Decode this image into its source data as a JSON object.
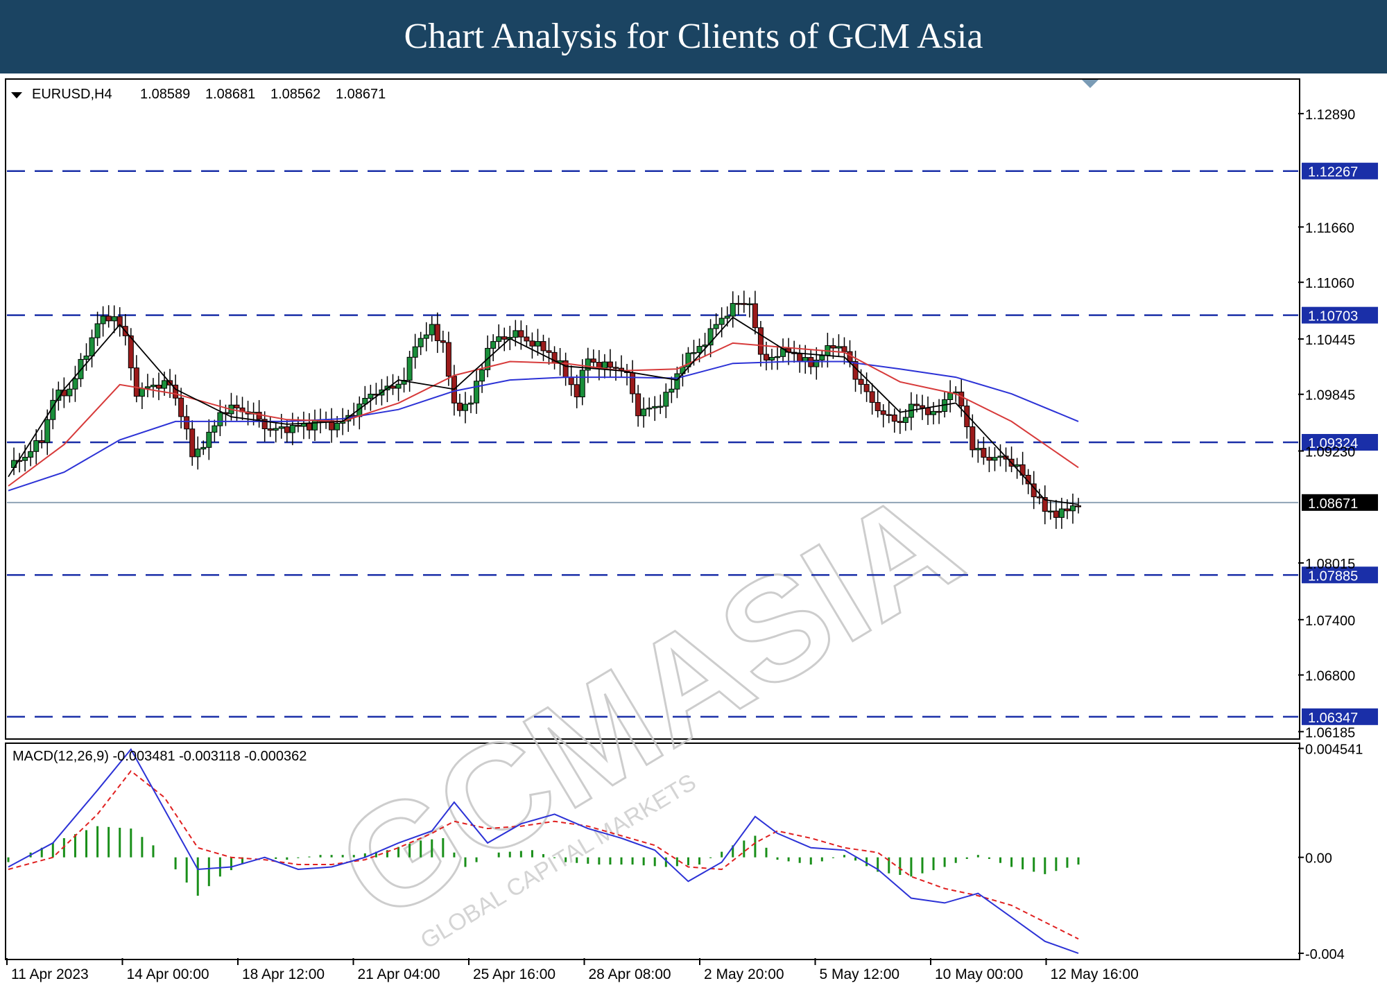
{
  "banner": {
    "title": "Chart Analysis for Clients of GCM Asia"
  },
  "chart_data": {
    "type": "candlestick",
    "symbol_header": {
      "symbol": "EURUSD,H4",
      "ohlc": [
        "1.08589",
        "1.08681",
        "1.08562",
        "1.08671"
      ]
    },
    "price_axis": {
      "range": [
        1.0612,
        1.1325
      ],
      "ticks": [
        {
          "value": 1.1289,
          "label": "1.12890"
        },
        {
          "value": 1.1166,
          "label": "1.11660"
        },
        {
          "value": 1.1106,
          "label": "1.11060"
        },
        {
          "value": 1.10445,
          "label": "1.10445"
        },
        {
          "value": 1.09845,
          "label": "1.09845"
        },
        {
          "value": 1.0923,
          "label": "1.09230"
        },
        {
          "value": 1.08015,
          "label": "1.08015"
        },
        {
          "value": 1.074,
          "label": "1.07400"
        },
        {
          "value": 1.068,
          "label": "1.06800"
        },
        {
          "value": 1.06185,
          "label": "1.06185"
        }
      ]
    },
    "levels": [
      {
        "value": 1.12267,
        "label": "1.12267"
      },
      {
        "value": 1.10703,
        "label": "1.10703"
      },
      {
        "value": 1.09324,
        "label": "1.09324"
      },
      {
        "value": 1.07885,
        "label": "1.07885"
      },
      {
        "value": 1.06347,
        "label": "1.06347"
      }
    ],
    "current_price": {
      "value": 1.08671,
      "label": "1.08671"
    },
    "x_labels": [
      "11 Apr 2023",
      "14 Apr 00:00",
      "18 Apr 12:00",
      "21 Apr 04:00",
      "25 Apr 16:00",
      "28 Apr 08:00",
      "2 May 20:00",
      "5 May 12:00",
      "10 May 00:00",
      "12 May 16:00"
    ],
    "close_path": [
      [
        0,
        1.0905
      ],
      [
        3,
        1.0918
      ],
      [
        6,
        1.0935
      ],
      [
        8,
        1.098
      ],
      [
        11,
        1.099
      ],
      [
        14,
        1.103
      ],
      [
        16,
        1.1062
      ],
      [
        19,
        1.107
      ],
      [
        21,
        1.1045
      ],
      [
        23,
        1.0985
      ],
      [
        26,
        1.0995
      ],
      [
        29,
        1.0995
      ],
      [
        31,
        1.0965
      ],
      [
        33,
        1.0918
      ],
      [
        36,
        1.0938
      ],
      [
        38,
        1.0965
      ],
      [
        41,
        1.097
      ],
      [
        44,
        1.0962
      ],
      [
        47,
        1.0945
      ],
      [
        50,
        1.0948
      ],
      [
        53,
        1.095
      ],
      [
        56,
        1.0955
      ],
      [
        59,
        1.095
      ],
      [
        62,
        1.0965
      ],
      [
        65,
        1.0985
      ],
      [
        68,
        1.099
      ],
      [
        71,
        1.1
      ],
      [
        73,
        1.104
      ],
      [
        76,
        1.1055
      ],
      [
        78,
        1.104
      ],
      [
        80,
        1.097
      ],
      [
        83,
        1.0975
      ],
      [
        86,
        1.1035
      ],
      [
        88,
        1.1045
      ],
      [
        91,
        1.105
      ],
      [
        94,
        1.104
      ],
      [
        97,
        1.103
      ],
      [
        99,
        1.1015
      ],
      [
        102,
        1.0985
      ],
      [
        104,
        1.1025
      ],
      [
        106,
        1.1015
      ],
      [
        109,
        1.1015
      ],
      [
        111,
        1.1005
      ],
      [
        113,
        1.0965
      ],
      [
        116,
        1.097
      ],
      [
        119,
        1.099
      ],
      [
        121,
        1.102
      ],
      [
        124,
        1.1035
      ],
      [
        127,
        1.106
      ],
      [
        130,
        1.108
      ],
      [
        133,
        1.1085
      ],
      [
        135,
        1.1025
      ],
      [
        138,
        1.1025
      ],
      [
        140,
        1.1035
      ],
      [
        142,
        1.102
      ],
      [
        145,
        1.102
      ],
      [
        148,
        1.104
      ],
      [
        150,
        1.103
      ],
      [
        152,
        1.1005
      ],
      [
        155,
        1.0975
      ],
      [
        158,
        1.0958
      ],
      [
        160,
        1.0955
      ],
      [
        163,
        1.0975
      ],
      [
        166,
        1.096
      ],
      [
        169,
        1.0988
      ],
      [
        171,
        1.0975
      ],
      [
        173,
        1.0925
      ],
      [
        176,
        1.0915
      ],
      [
        179,
        1.0915
      ],
      [
        181,
        1.0905
      ],
      [
        184,
        1.0878
      ],
      [
        186,
        1.0858
      ],
      [
        189,
        1.0855
      ],
      [
        192,
        1.0867
      ]
    ],
    "ma_black": [
      [
        0,
        1.0895
      ],
      [
        10,
        1.099
      ],
      [
        20,
        1.106
      ],
      [
        30,
        1.099
      ],
      [
        40,
        1.096
      ],
      [
        50,
        1.0952
      ],
      [
        60,
        1.0955
      ],
      [
        70,
        1.1
      ],
      [
        80,
        1.099
      ],
      [
        90,
        1.1045
      ],
      [
        100,
        1.1015
      ],
      [
        110,
        1.101
      ],
      [
        120,
        1.1
      ],
      [
        130,
        1.1068
      ],
      [
        140,
        1.103
      ],
      [
        150,
        1.1025
      ],
      [
        160,
        1.0965
      ],
      [
        170,
        1.0975
      ],
      [
        180,
        1.091
      ],
      [
        186,
        1.087
      ],
      [
        192,
        1.0865
      ]
    ],
    "ma_red": [
      [
        0,
        1.0885
      ],
      [
        10,
        1.093
      ],
      [
        20,
        1.0995
      ],
      [
        30,
        1.0985
      ],
      [
        40,
        1.0968
      ],
      [
        50,
        1.0957
      ],
      [
        60,
        1.0955
      ],
      [
        70,
        1.0975
      ],
      [
        80,
        1.1005
      ],
      [
        90,
        1.102
      ],
      [
        100,
        1.1018
      ],
      [
        110,
        1.101
      ],
      [
        120,
        1.1012
      ],
      [
        130,
        1.104
      ],
      [
        140,
        1.1035
      ],
      [
        150,
        1.103
      ],
      [
        160,
        1.0998
      ],
      [
        170,
        1.0985
      ],
      [
        180,
        1.0955
      ],
      [
        192,
        1.0905
      ]
    ],
    "ma_blue": [
      [
        0,
        1.088
      ],
      [
        10,
        1.09
      ],
      [
        20,
        1.0935
      ],
      [
        30,
        1.0955
      ],
      [
        40,
        1.0955
      ],
      [
        50,
        1.0955
      ],
      [
        60,
        1.0958
      ],
      [
        70,
        1.0968
      ],
      [
        80,
        1.0988
      ],
      [
        90,
        1.1
      ],
      [
        100,
        1.1003
      ],
      [
        110,
        1.1003
      ],
      [
        120,
        1.1002
      ],
      [
        130,
        1.1018
      ],
      [
        140,
        1.102
      ],
      [
        150,
        1.102
      ],
      [
        160,
        1.1012
      ],
      [
        170,
        1.1003
      ],
      [
        180,
        1.0985
      ],
      [
        192,
        1.0955
      ]
    ],
    "macd": {
      "label": "MACD(12,26,9) -0.003481 -0.003118 -0.000362",
      "range": [
        -0.0042,
        0.0047
      ],
      "ticks": [
        {
          "value": 0.004541,
          "label": "0.004541"
        },
        {
          "value": 0.0,
          "label": "0.00"
        },
        {
          "value": -0.004,
          "label": "-0.004"
        }
      ],
      "macd_line": [
        [
          0,
          -0.0004
        ],
        [
          8,
          0.0006
        ],
        [
          16,
          0.0028
        ],
        [
          22,
          0.0045
        ],
        [
          28,
          0.002
        ],
        [
          34,
          -0.0005
        ],
        [
          40,
          -0.0004
        ],
        [
          46,
          0.0
        ],
        [
          52,
          -0.0005
        ],
        [
          58,
          -0.0004
        ],
        [
          64,
          0.0
        ],
        [
          70,
          0.0006
        ],
        [
          76,
          0.0011
        ],
        [
          80,
          0.0023
        ],
        [
          86,
          0.0006
        ],
        [
          92,
          0.0014
        ],
        [
          98,
          0.0018
        ],
        [
          104,
          0.0012
        ],
        [
          110,
          0.0008
        ],
        [
          116,
          0.0003
        ],
        [
          122,
          -0.001
        ],
        [
          128,
          -0.0002
        ],
        [
          134,
          0.0017
        ],
        [
          138,
          0.001
        ],
        [
          144,
          0.0004
        ],
        [
          150,
          0.0003
        ],
        [
          156,
          -0.0005
        ],
        [
          162,
          -0.0017
        ],
        [
          168,
          -0.0019
        ],
        [
          174,
          -0.0015
        ],
        [
          180,
          -0.0025
        ],
        [
          186,
          -0.0035
        ],
        [
          192,
          -0.004
        ]
      ],
      "signal_line": [
        [
          0,
          -0.0005
        ],
        [
          8,
          0.0
        ],
        [
          16,
          0.0018
        ],
        [
          22,
          0.0036
        ],
        [
          28,
          0.0025
        ],
        [
          34,
          0.0004
        ],
        [
          40,
          0.0
        ],
        [
          46,
          -0.0001
        ],
        [
          52,
          -0.0003
        ],
        [
          58,
          -0.0003
        ],
        [
          64,
          -0.0001
        ],
        [
          70,
          0.0004
        ],
        [
          76,
          0.001
        ],
        [
          80,
          0.0015
        ],
        [
          86,
          0.0012
        ],
        [
          92,
          0.0013
        ],
        [
          98,
          0.0015
        ],
        [
          104,
          0.0013
        ],
        [
          110,
          0.0009
        ],
        [
          116,
          0.0005
        ],
        [
          122,
          -0.0004
        ],
        [
          128,
          -0.0005
        ],
        [
          134,
          0.0006
        ],
        [
          138,
          0.0011
        ],
        [
          144,
          0.0008
        ],
        [
          150,
          0.0004
        ],
        [
          156,
          0.0002
        ],
        [
          162,
          -0.0008
        ],
        [
          168,
          -0.0013
        ],
        [
          174,
          -0.0016
        ],
        [
          180,
          -0.002
        ],
        [
          186,
          -0.0027
        ],
        [
          192,
          -0.0034
        ]
      ],
      "histogram": [
        [
          0,
          -0.0002
        ],
        [
          6,
          0.0004
        ],
        [
          10,
          0.0008
        ],
        [
          16,
          0.0013
        ],
        [
          22,
          0.0012
        ],
        [
          26,
          0.0005
        ],
        [
          30,
          -0.0005
        ],
        [
          34,
          -0.0016
        ],
        [
          38,
          -0.0008
        ],
        [
          44,
          0.0
        ],
        [
          50,
          -0.0001
        ],
        [
          56,
          0.0001
        ],
        [
          62,
          0.0001
        ],
        [
          68,
          0.0003
        ],
        [
          74,
          0.0007
        ],
        [
          78,
          0.0008
        ],
        [
          82,
          -0.0004
        ],
        [
          88,
          0.0002
        ],
        [
          94,
          0.0003
        ],
        [
          100,
          -0.0002
        ],
        [
          106,
          -0.0003
        ],
        [
          112,
          -0.0003
        ],
        [
          118,
          -0.0004
        ],
        [
          124,
          -0.0003
        ],
        [
          130,
          0.0005
        ],
        [
          134,
          0.0009
        ],
        [
          138,
          -0.0001
        ],
        [
          144,
          -0.0003
        ],
        [
          150,
          0.0001
        ],
        [
          156,
          -0.0006
        ],
        [
          162,
          -0.0008
        ],
        [
          168,
          -0.0004
        ],
        [
          174,
          0.0001
        ],
        [
          180,
          -0.0004
        ],
        [
          186,
          -0.0007
        ],
        [
          192,
          -0.0003
        ]
      ]
    },
    "colors": {
      "ma_black": "#000000",
      "ma_red": "#d73a3a",
      "ma_blue": "#2c32d6",
      "levels": "#1a2fa8",
      "bull": "#1a8f3a",
      "bear": "#9b1b1b",
      "macd_line": "#2c32d6",
      "signal_line": "#e02020",
      "histogram": "#1a8f1a",
      "label_bg": "#1a2fa8"
    }
  },
  "watermark": {
    "brand": "GCMASIA",
    "tagline": "GLOBAL CAPITAL MARKETS"
  }
}
